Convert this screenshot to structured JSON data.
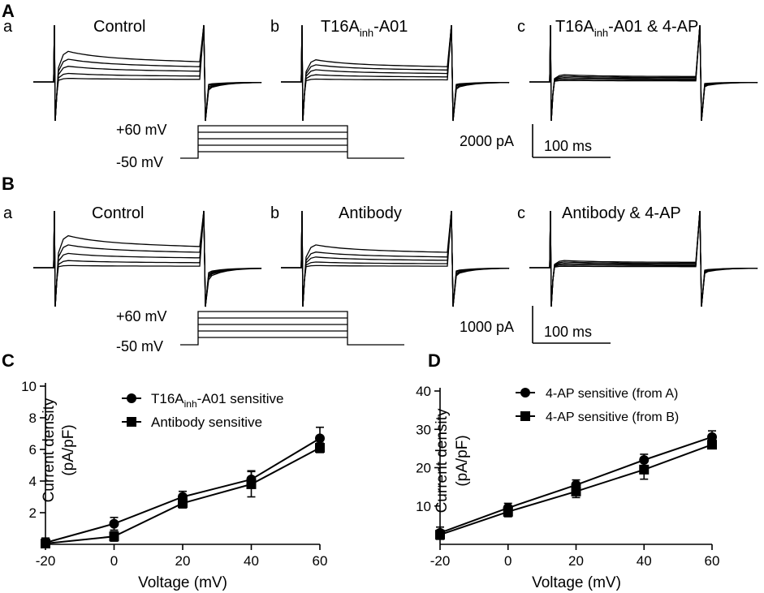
{
  "panel_A": {
    "letter": "A",
    "subpanels": [
      {
        "letter": "a",
        "title": "Control"
      },
      {
        "letter": "b",
        "title_main": "T16A",
        "title_sub": "inh",
        "title_tail": "-A01"
      },
      {
        "letter": "c",
        "title_main": "T16A",
        "title_sub": "inh",
        "title_tail": "-A01 & 4-AP"
      }
    ],
    "protocol": {
      "high_label": "+60 mV",
      "low_label": "-50 mV"
    },
    "scalebar": {
      "current_label": "2000 pA",
      "time_label": "100 ms"
    }
  },
  "panel_B": {
    "letter": "B",
    "subpanels": [
      {
        "letter": "a",
        "title": "Control"
      },
      {
        "letter": "b",
        "title": "Antibody"
      },
      {
        "letter": "c",
        "title": "Antibody & 4-AP"
      }
    ],
    "protocol": {
      "high_label": "+60 mV",
      "low_label": "-50 mV"
    },
    "scalebar": {
      "current_label": "1000 pA",
      "time_label": "100 ms"
    }
  },
  "chart_data": [
    {
      "panel": "C",
      "type": "line",
      "xlabel": "Voltage (mV)",
      "ylabel_line1": "Current density",
      "ylabel_line2": "(pA/pF)",
      "xlim": [
        -20,
        60
      ],
      "ylim": [
        0,
        10
      ],
      "x_ticks": [
        -20,
        0,
        20,
        40,
        60
      ],
      "y_ticks": [
        2,
        4,
        6,
        8,
        10
      ],
      "series": [
        {
          "name_main": "T16A",
          "name_sub": "inh",
          "name_tail": "-A01 sensitive",
          "marker": "circle",
          "x": [
            -20,
            0,
            20,
            40,
            60
          ],
          "y": [
            0.1,
            1.3,
            3.0,
            4.1,
            6.7
          ],
          "err": [
            0.3,
            0.4,
            0.35,
            0.55,
            0.7
          ]
        },
        {
          "name": "Antibody sensitive",
          "marker": "square",
          "x": [
            -20,
            0,
            20,
            40,
            60
          ],
          "y": [
            0.05,
            0.5,
            2.6,
            3.8,
            6.1
          ],
          "err": [
            0.2,
            0.3,
            0.3,
            0.8,
            0.3
          ]
        }
      ]
    },
    {
      "panel": "D",
      "type": "line",
      "xlabel": "Voltage (mV)",
      "ylabel_line1": "Current density",
      "ylabel_line2": "(pA/pF)",
      "xlim": [
        -20,
        60
      ],
      "ylim": [
        0,
        40
      ],
      "x_ticks": [
        -20,
        0,
        20,
        40,
        60
      ],
      "y_ticks": [
        10,
        20,
        30,
        40
      ],
      "series": [
        {
          "name": "4-AP sensitive (from A)",
          "marker": "circle",
          "x": [
            -20,
            0,
            20,
            40,
            60
          ],
          "y": [
            3.0,
            9.5,
            15.5,
            22.0,
            28.0
          ],
          "err": [
            1.5,
            1.2,
            1.3,
            1.5,
            1.6
          ]
        },
        {
          "name": "4-AP sensitive (from B)",
          "marker": "square",
          "x": [
            -20,
            0,
            20,
            40,
            60
          ],
          "y": [
            2.5,
            8.5,
            13.8,
            19.5,
            26.0
          ],
          "err": [
            1.2,
            1.3,
            1.6,
            2.5,
            1.0
          ]
        }
      ]
    }
  ]
}
